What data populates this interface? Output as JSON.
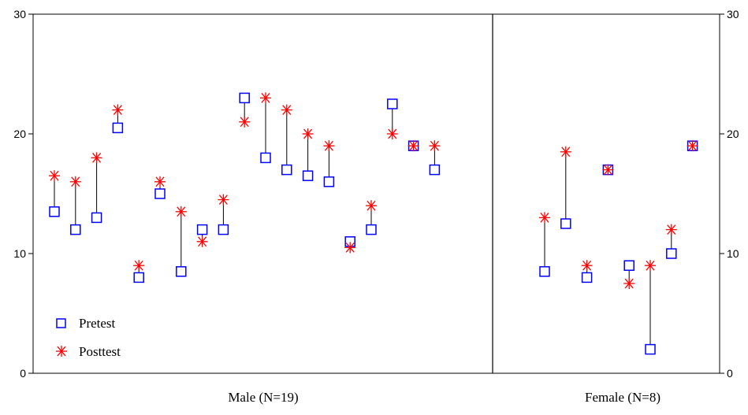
{
  "chart_data": {
    "type": "scatter",
    "ylim": [
      0,
      30
    ],
    "yticks": [
      0,
      10,
      20,
      30
    ],
    "grid": false,
    "legend_position": "bottom-left",
    "groups": [
      {
        "label": "Male (N=19)"
      },
      {
        "label": "Female (N=8)"
      }
    ],
    "series": [
      {
        "name": "Pretest",
        "marker": "square",
        "color": "#0000ff"
      },
      {
        "name": "Posttest",
        "marker": "asterisk",
        "color": "#ff0000"
      }
    ],
    "cases": [
      {
        "group": "Male (N=19)",
        "pretest": 13.5,
        "posttest": 16.5
      },
      {
        "group": "Male (N=19)",
        "pretest": 12,
        "posttest": 16
      },
      {
        "group": "Male (N=19)",
        "pretest": 13,
        "posttest": 18
      },
      {
        "group": "Male (N=19)",
        "pretest": 20.5,
        "posttest": 22
      },
      {
        "group": "Male (N=19)",
        "pretest": 8,
        "posttest": 9
      },
      {
        "group": "Male (N=19)",
        "pretest": 15,
        "posttest": 16
      },
      {
        "group": "Male (N=19)",
        "pretest": 8.5,
        "posttest": 13.5
      },
      {
        "group": "Male (N=19)",
        "pretest": 12,
        "posttest": 11
      },
      {
        "group": "Male (N=19)",
        "pretest": 12,
        "posttest": 14.5
      },
      {
        "group": "Male (N=19)",
        "pretest": 23,
        "posttest": 21
      },
      {
        "group": "Male (N=19)",
        "pretest": 18,
        "posttest": 23
      },
      {
        "group": "Male (N=19)",
        "pretest": 17,
        "posttest": 22
      },
      {
        "group": "Male (N=19)",
        "pretest": 16.5,
        "posttest": 20
      },
      {
        "group": "Male (N=19)",
        "pretest": 16,
        "posttest": 19
      },
      {
        "group": "Male (N=19)",
        "pretest": 11,
        "posttest": 10.5
      },
      {
        "group": "Male (N=19)",
        "pretest": 12,
        "posttest": 14
      },
      {
        "group": "Male (N=19)",
        "pretest": 22.5,
        "posttest": 20
      },
      {
        "group": "Male (N=19)",
        "pretest": 19,
        "posttest": 19
      },
      {
        "group": "Male (N=19)",
        "pretest": 17,
        "posttest": 19
      },
      {
        "group": "Female (N=8)",
        "pretest": 8.5,
        "posttest": 13
      },
      {
        "group": "Female (N=8)",
        "pretest": 12.5,
        "posttest": 18.5
      },
      {
        "group": "Female (N=8)",
        "pretest": 8,
        "posttest": 9
      },
      {
        "group": "Female (N=8)",
        "pretest": 17,
        "posttest": 17
      },
      {
        "group": "Female (N=8)",
        "pretest": 9,
        "posttest": 7.5
      },
      {
        "group": "Female (N=8)",
        "pretest": 2,
        "posttest": 9
      },
      {
        "group": "Female (N=8)",
        "pretest": 10,
        "posttest": 12
      },
      {
        "group": "Female (N=8)",
        "pretest": 19,
        "posttest": 19
      }
    ]
  }
}
